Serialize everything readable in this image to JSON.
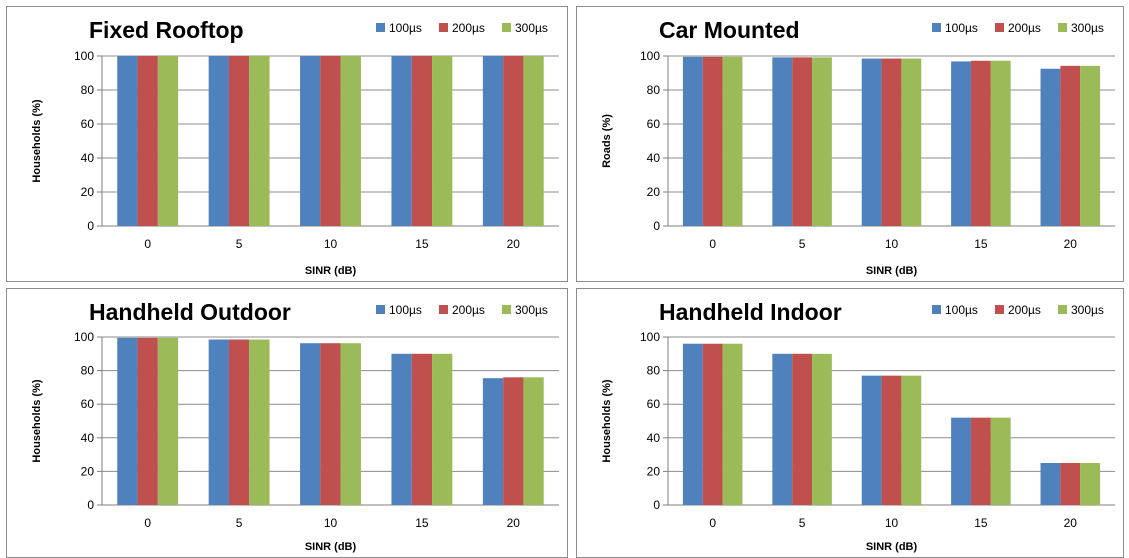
{
  "colors": {
    "series": [
      "#4f81bd",
      "#c0504d",
      "#9bbb59"
    ],
    "grid": "#8c8c8c",
    "axis": "#7f7f7f"
  },
  "chart_data": [
    {
      "type": "bar",
      "title": "Fixed Rooftop",
      "xlabel": "SINR (dB)",
      "ylabel": "Households (%)",
      "categories": [
        "0",
        "5",
        "10",
        "15",
        "20"
      ],
      "yticks": [
        "0",
        "20",
        "40",
        "60",
        "80",
        "100"
      ],
      "ylim": [
        0,
        100
      ],
      "grid": true,
      "legend": "top-right",
      "series": [
        {
          "name": "100µs",
          "values": [
            100,
            100,
            100,
            100,
            100
          ]
        },
        {
          "name": "200µs",
          "values": [
            100,
            100,
            100,
            100,
            100
          ]
        },
        {
          "name": "300µs",
          "values": [
            100,
            100,
            100,
            100,
            100
          ]
        }
      ]
    },
    {
      "type": "bar",
      "title": "Car Mounted",
      "xlabel": "SINR (dB)",
      "ylabel": "Roads (%)",
      "categories": [
        "0",
        "5",
        "10",
        "15",
        "20"
      ],
      "yticks": [
        "0",
        "20",
        "40",
        "60",
        "80",
        "100"
      ],
      "ylim": [
        0,
        100
      ],
      "grid": true,
      "legend": "top-right",
      "series": [
        {
          "name": "100µs",
          "values": [
            99.5,
            99.2,
            98.5,
            96.8,
            92.5
          ]
        },
        {
          "name": "200µs",
          "values": [
            99.5,
            99.2,
            98.5,
            97.2,
            94.2
          ]
        },
        {
          "name": "300µs",
          "values": [
            99.5,
            99.2,
            98.5,
            97.2,
            94.2
          ]
        }
      ]
    },
    {
      "type": "bar",
      "title": "Handheld Outdoor",
      "xlabel": "SINR (dB)",
      "ylabel": "Households (%)",
      "categories": [
        "0",
        "5",
        "10",
        "15",
        "20"
      ],
      "yticks": [
        "0",
        "20",
        "40",
        "60",
        "80",
        "100"
      ],
      "ylim": [
        0,
        100
      ],
      "grid": true,
      "legend": "top-right",
      "series": [
        {
          "name": "100µs",
          "values": [
            99.5,
            98.5,
            96.3,
            90,
            75.5
          ]
        },
        {
          "name": "200µs",
          "values": [
            99.5,
            98.5,
            96.3,
            90,
            76
          ]
        },
        {
          "name": "300µs",
          "values": [
            99.5,
            98.5,
            96.3,
            90,
            76
          ]
        }
      ]
    },
    {
      "type": "bar",
      "title": "Handheld Indoor",
      "xlabel": "SINR (dB)",
      "ylabel": "Households (%)",
      "categories": [
        "0",
        "5",
        "10",
        "15",
        "20"
      ],
      "yticks": [
        "0",
        "20",
        "40",
        "60",
        "80",
        "100"
      ],
      "ylim": [
        0,
        100
      ],
      "grid": true,
      "legend": "top-right",
      "series": [
        {
          "name": "100µs",
          "values": [
            96,
            90,
            77,
            52,
            25
          ]
        },
        {
          "name": "200µs",
          "values": [
            96,
            90,
            77,
            52,
            25
          ]
        },
        {
          "name": "300µs",
          "values": [
            96,
            90,
            77,
            52,
            25
          ]
        }
      ]
    }
  ]
}
